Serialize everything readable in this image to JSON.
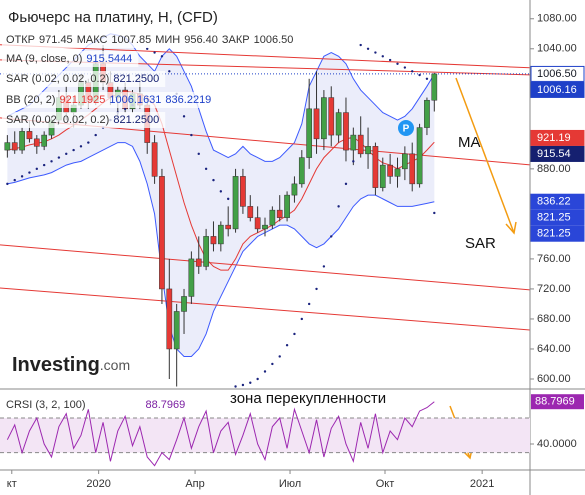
{
  "chart_data": {
    "type": "candlestick",
    "title": "Фьючерс на платину, H, (CFD)",
    "info": [
      {
        "label": "ОТКР",
        "value": "971.45"
      },
      {
        "label": "МАКС",
        "value": "1007.85"
      },
      {
        "label": "МИН",
        "value": "956.40"
      },
      {
        "label": "ЗАКР",
        "value": "1006.50"
      }
    ],
    "xlim": [
      -1,
      71
    ],
    "xticks": [
      {
        "value": 0.6,
        "label": "кт"
      },
      {
        "value": 12.4,
        "label": "2020"
      },
      {
        "value": 25.5,
        "label": "Апр"
      },
      {
        "value": 38.4,
        "label": "Июл"
      },
      {
        "value": 51.3,
        "label": "Окт"
      },
      {
        "value": 64.5,
        "label": "2021"
      }
    ],
    "ylim": [
      588,
      1105
    ],
    "yticks": [
      {
        "value": 600,
        "label": "600.00"
      },
      {
        "value": 640,
        "label": "640.00"
      },
      {
        "value": 680,
        "label": "680.00"
      },
      {
        "value": 720,
        "label": "720.00"
      },
      {
        "value": 760,
        "label": "760.00"
      },
      {
        "value": 880,
        "label": "880.00"
      },
      {
        "value": 1040,
        "label": "1040.00"
      },
      {
        "value": 1080,
        "label": "1080.00"
      }
    ],
    "up_color": "#43a047",
    "down_color": "#e53935",
    "open": [
      905,
      915,
      905,
      930,
      920,
      910,
      925,
      945,
      975,
      955,
      965,
      995,
      970,
      1020,
      995,
      975,
      985,
      960,
      980,
      965,
      915,
      870,
      720,
      640,
      690,
      710,
      760,
      750,
      790,
      780,
      805,
      800,
      870,
      830,
      815,
      800,
      805,
      825,
      815,
      845,
      860,
      895,
      960,
      920,
      975,
      925,
      955,
      905,
      925,
      900,
      910,
      855,
      885,
      870,
      880,
      900,
      860,
      935,
      971.45
    ],
    "high": [
      925,
      930,
      935,
      945,
      925,
      930,
      950,
      985,
      990,
      975,
      1005,
      1000,
      1030,
      1045,
      1010,
      990,
      995,
      985,
      1000,
      975,
      925,
      880,
      760,
      700,
      720,
      770,
      790,
      800,
      810,
      810,
      830,
      880,
      880,
      845,
      830,
      815,
      830,
      845,
      850,
      870,
      905,
      1000,
      1010,
      985,
      990,
      960,
      975,
      935,
      950,
      935,
      915,
      895,
      900,
      895,
      910,
      915,
      940,
      975,
      1007.85
    ],
    "low": [
      895,
      900,
      900,
      915,
      900,
      905,
      920,
      940,
      945,
      935,
      960,
      960,
      965,
      985,
      965,
      950,
      955,
      955,
      960,
      900,
      860,
      700,
      600,
      590,
      660,
      700,
      740,
      745,
      770,
      770,
      790,
      795,
      820,
      810,
      795,
      790,
      800,
      810,
      810,
      835,
      855,
      880,
      900,
      905,
      910,
      915,
      890,
      885,
      895,
      880,
      845,
      850,
      860,
      855,
      865,
      850,
      855,
      925,
      956.4
    ],
    "close": [
      915,
      905,
      930,
      920,
      910,
      925,
      945,
      975,
      955,
      965,
      995,
      970,
      1020,
      995,
      975,
      985,
      960,
      980,
      965,
      915,
      870,
      720,
      640,
      690,
      710,
      760,
      750,
      790,
      780,
      805,
      800,
      870,
      830,
      815,
      800,
      805,
      825,
      815,
      845,
      860,
      895,
      960,
      920,
      975,
      925,
      955,
      905,
      925,
      900,
      910,
      855,
      885,
      870,
      880,
      900,
      860,
      935,
      971.45,
      1006.5
    ],
    "last_price": 1006.5,
    "ma": {
      "name": "MA (9, close, 0)",
      "label": "915.5444",
      "color": "#e53935",
      "values": [
        905,
        907,
        909,
        912,
        914,
        916,
        920,
        925,
        932,
        938,
        945,
        952,
        960,
        968,
        975,
        980,
        983,
        982,
        980,
        975,
        965,
        940,
        905,
        870,
        835,
        805,
        780,
        760,
        750,
        745,
        745,
        760,
        780,
        790,
        795,
        800,
        805,
        812,
        818,
        825,
        840,
        860,
        880,
        895,
        905,
        915,
        920,
        922,
        915,
        905,
        895,
        888,
        885,
        880,
        885,
        890,
        895,
        905,
        915.5444
      ]
    },
    "sar": {
      "name": "SAR (0.02, 0.02, 0.2)",
      "label": "821.2500",
      "color": "#1a237e",
      "values": [
        860,
        865,
        870,
        875,
        880,
        885,
        890,
        895,
        900,
        905,
        910,
        915,
        925,
        935,
        945,
        955,
        960,
        965,
        968,
        1040,
        1035,
        1030,
        1010,
        980,
        950,
        925,
        900,
        880,
        865,
        850,
        840,
        590,
        592,
        595,
        600,
        610,
        620,
        630,
        645,
        660,
        680,
        700,
        720,
        750,
        790,
        830,
        860,
        890,
        1045,
        1040,
        1035,
        1030,
        1025,
        1020,
        1015,
        1010,
        1005,
        1000,
        821.25
      ]
    },
    "bb": {
      "name": "BB (20, 2)",
      "labels": [
        "921.1925",
        "1006.1631",
        "836.2219"
      ],
      "color": "#3d5afe",
      "upper": [
        950,
        955,
        960,
        965,
        975,
        985,
        995,
        1005,
        1015,
        1025,
        1035,
        1045,
        1050,
        1055,
        1060,
        1058,
        1055,
        1045,
        1030,
        1020,
        1010,
        1030,
        1040,
        1030,
        1010,
        990,
        960,
        930,
        905,
        900,
        895,
        900,
        910,
        900,
        895,
        890,
        890,
        895,
        905,
        915,
        940,
        990,
        1010,
        1030,
        1035,
        1030,
        1020,
        1000,
        985,
        975,
        965,
        955,
        950,
        945,
        950,
        960,
        975,
        990,
        1006.1631
      ],
      "lower": [
        860,
        862,
        865,
        868,
        870,
        872,
        875,
        880,
        885,
        888,
        890,
        895,
        900,
        905,
        910,
        915,
        915,
        910,
        890,
        860,
        820,
        740,
        670,
        640,
        630,
        630,
        640,
        660,
        690,
        710,
        730,
        750,
        770,
        780,
        790,
        795,
        800,
        805,
        805,
        800,
        790,
        780,
        775,
        780,
        790,
        800,
        815,
        830,
        840,
        845,
        845,
        840,
        835,
        830,
        830,
        830,
        832,
        834,
        836.2219
      ]
    },
    "sar2": {
      "name": "SAR (0.02, 0.02, 0.2)",
      "label": "821.2500"
    },
    "trendlines": [
      {
        "x": [
          -1,
          71
        ],
        "y": [
          1045.3,
          1014.7
        ]
      },
      {
        "x": [
          -1,
          71
        ],
        "y": [
          1025.3,
          1005.3
        ]
      },
      {
        "x": [
          -1,
          71
        ],
        "y": [
          948,
          885.3
        ]
      },
      {
        "x": [
          -1,
          71
        ],
        "y": [
          778.7,
          718.7
        ]
      },
      {
        "x": [
          -1,
          71
        ],
        "y": [
          721.3,
          665.3
        ]
      }
    ],
    "price_tags": [
      {
        "value": 1006.5,
        "label": "1006.50",
        "color": "#ffffff",
        "text_color": "#131722"
      },
      {
        "value": 1006.16,
        "label": "1006.16",
        "color": "#1e40c8",
        "text_color": "#ffffff"
      },
      {
        "value": 921.19,
        "label": "921.19",
        "color": "#e53935",
        "text_color": "#ffffff"
      },
      {
        "value": 915.54,
        "label": "915.54",
        "color": "#152070",
        "text_color": "#ffffff"
      },
      {
        "value": 836.22,
        "label": "836.22",
        "color": "#2a46d8",
        "text_color": "#ffffff"
      },
      {
        "value": 821.25,
        "label": "821.25",
        "color": "#2a46d8",
        "text_color": "#ffffff"
      },
      {
        "value": 821.25,
        "label": "821.25",
        "color": "#2a46d8",
        "text_color": "#ffffff"
      }
    ],
    "annotations": [
      "MA",
      "SAR",
      "зона перекупленности"
    ],
    "logo": [
      "Investing",
      ".com"
    ],
    "crsi": {
      "name": "CRSI (3, 2, 100)",
      "label": "88.7969",
      "color": "#9c27b0",
      "ylim": [
        10,
        100
      ],
      "yticks": [
        {
          "value": 40,
          "label": "40.0000"
        }
      ],
      "levels": [
        70,
        30
      ],
      "values": [
        45,
        62,
        30,
        55,
        70,
        40,
        25,
        60,
        75,
        35,
        50,
        80,
        30,
        65,
        20,
        55,
        72,
        38,
        60,
        25,
        15,
        30,
        22,
        45,
        70,
        35,
        60,
        78,
        30,
        55,
        65,
        28,
        50,
        75,
        40,
        22,
        60,
        70,
        35,
        80,
        55,
        30,
        68,
        25,
        58,
        72,
        40,
        20,
        65,
        35,
        75,
        30,
        55,
        45,
        70,
        60,
        78,
        82,
        88.7969
      ]
    }
  }
}
